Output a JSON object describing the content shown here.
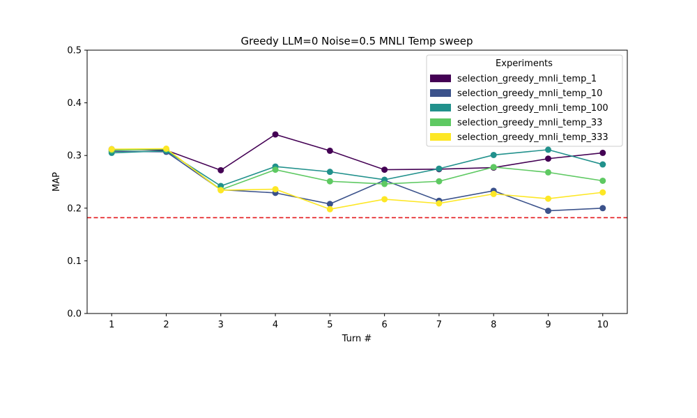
{
  "chart_data": {
    "type": "line",
    "title": "Greedy LLM=0 Noise=0.5 MNLI Temp sweep",
    "xlabel": "Turn #",
    "ylabel": "MAP",
    "x": [
      1,
      2,
      3,
      4,
      5,
      6,
      7,
      8,
      9,
      10
    ],
    "xlim": [
      0.55,
      10.45
    ],
    "ylim": [
      0,
      0.5
    ],
    "yticks": [
      0.0,
      0.1,
      0.2,
      0.3,
      0.4,
      0.5
    ],
    "ytick_labels": [
      "0.0",
      "0.1",
      "0.2",
      "0.3",
      "0.4",
      "0.5"
    ],
    "xtick_labels": [
      "1",
      "2",
      "3",
      "4",
      "5",
      "6",
      "7",
      "8",
      "9",
      "10"
    ],
    "grid": false,
    "legend": {
      "title": "Experiments",
      "placement": "top-right"
    },
    "baseline": {
      "value": 0.182,
      "color": "#e3171b",
      "style": "dashed"
    },
    "series": [
      {
        "name": "selection_greedy_mnli_temp_1",
        "color": "#440154",
        "values": [
          0.312,
          0.31,
          0.272,
          0.34,
          0.309,
          0.273,
          0.274,
          0.277,
          0.294,
          0.305
        ]
      },
      {
        "name": "selection_greedy_mnli_temp_10",
        "color": "#3b528b",
        "values": [
          0.308,
          0.307,
          0.235,
          0.229,
          0.208,
          0.253,
          0.214,
          0.233,
          0.195,
          0.2
        ]
      },
      {
        "name": "selection_greedy_mnli_temp_100",
        "color": "#21918c",
        "values": [
          0.305,
          0.309,
          0.242,
          0.279,
          0.269,
          0.254,
          0.275,
          0.301,
          0.311,
          0.283
        ]
      },
      {
        "name": "selection_greedy_mnli_temp_33",
        "color": "#5ec962",
        "values": [
          0.31,
          0.312,
          0.235,
          0.273,
          0.251,
          0.246,
          0.251,
          0.278,
          0.268,
          0.252
        ]
      },
      {
        "name": "selection_greedy_mnli_temp_333",
        "color": "#fde725",
        "values": [
          0.312,
          0.313,
          0.234,
          0.236,
          0.198,
          0.217,
          0.209,
          0.227,
          0.218,
          0.23
        ]
      }
    ]
  }
}
